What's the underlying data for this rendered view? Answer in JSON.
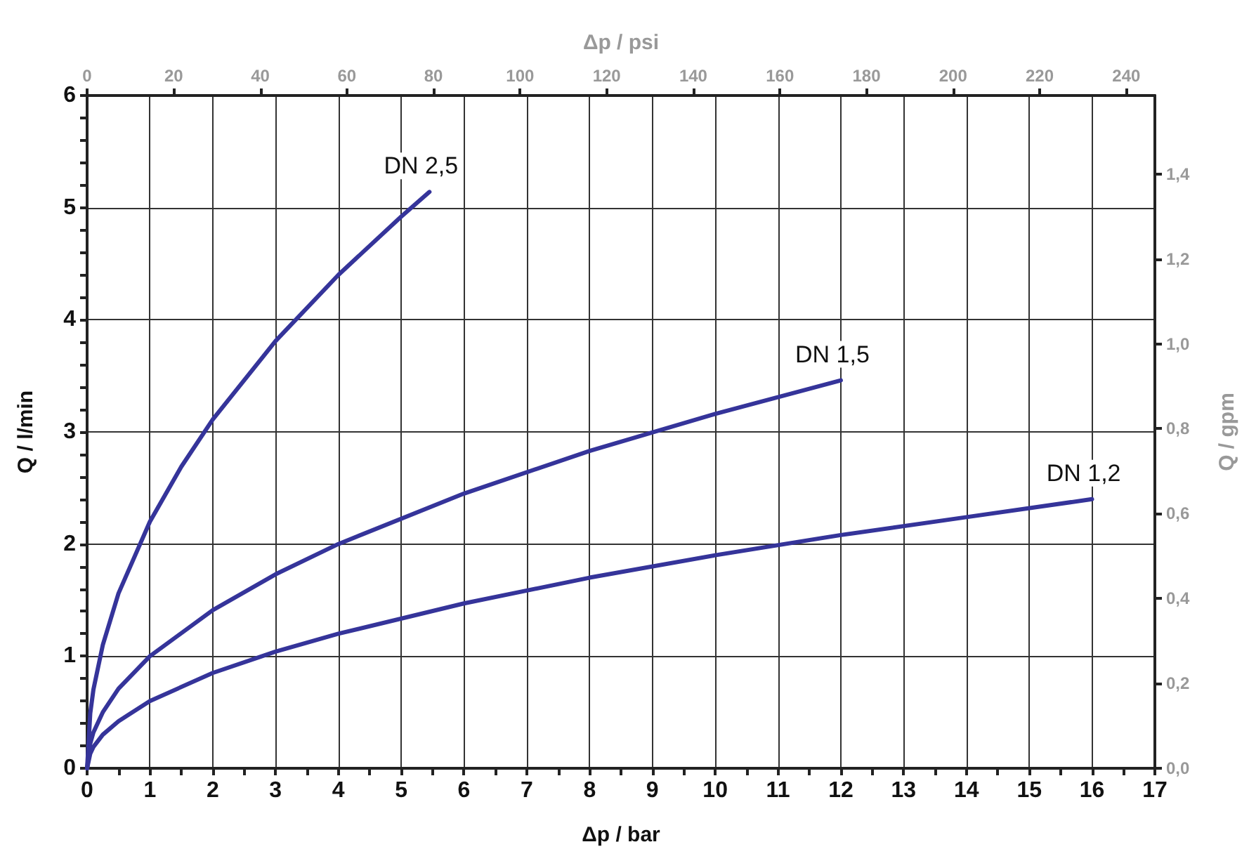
{
  "chart_data": {
    "type": "line",
    "xlabel": "Δp / bar",
    "ylabel": "Q / l/min",
    "x2label": "Δp / psi",
    "y2label": "Q / gpm",
    "xlim": [
      0,
      17
    ],
    "xticks": [
      0,
      {
        "value": 0.5,
        "label": null
      },
      1,
      {
        "value": 1.5,
        "label": null
      },
      2,
      {
        "value": 2.5,
        "label": null
      },
      3,
      {
        "value": 3.5,
        "label": null
      },
      4,
      {
        "value": 4.5,
        "label": null
      },
      5,
      {
        "value": 5.5,
        "label": null
      },
      6,
      {
        "value": 6.5,
        "label": null
      },
      7,
      {
        "value": 7.5,
        "label": null
      },
      8,
      {
        "value": 8.5,
        "label": null
      },
      9,
      {
        "value": 9.5,
        "label": null
      },
      10,
      {
        "value": 10.5,
        "label": null
      },
      11,
      {
        "value": 11.5,
        "label": null
      },
      12,
      {
        "value": 12.5,
        "label": null
      },
      13,
      {
        "value": 13.5,
        "label": null
      },
      14,
      {
        "value": 14.5,
        "label": null
      },
      15,
      {
        "value": 15.5,
        "label": null
      },
      16,
      {
        "value": 16.5,
        "label": null
      },
      17
    ],
    "ylim": [
      0,
      6
    ],
    "yticks": [
      0,
      {
        "value": 0.2,
        "label": null
      },
      {
        "value": 0.4,
        "label": null
      },
      {
        "value": 0.6,
        "label": null
      },
      {
        "value": 0.8,
        "label": null
      },
      1,
      {
        "value": 1.2,
        "label": null
      },
      {
        "value": 1.4,
        "label": null
      },
      {
        "value": 1.6,
        "label": null
      },
      {
        "value": 1.8,
        "label": null
      },
      2,
      {
        "value": 2.2,
        "label": null
      },
      {
        "value": 2.4,
        "label": null
      },
      {
        "value": 2.6,
        "label": null
      },
      {
        "value": 2.8,
        "label": null
      },
      3,
      {
        "value": 3.2,
        "label": null
      },
      {
        "value": 3.4,
        "label": null
      },
      {
        "value": 3.6,
        "label": null
      },
      {
        "value": 3.8,
        "label": null
      },
      4,
      {
        "value": 4.2,
        "label": null
      },
      {
        "value": 4.4,
        "label": null
      },
      {
        "value": 4.6,
        "label": null
      },
      {
        "value": 4.8,
        "label": null
      },
      5,
      {
        "value": 5.2,
        "label": null
      },
      {
        "value": 5.4,
        "label": null
      },
      {
        "value": 5.6,
        "label": null
      },
      {
        "value": 5.8,
        "label": null
      },
      6
    ],
    "x2lim": [
      0,
      246.6
    ],
    "x2ticks": [
      0,
      20,
      40,
      60,
      80,
      100,
      120,
      140,
      160,
      180,
      200,
      220,
      240
    ],
    "y2lim": [
      0,
      1.585
    ],
    "y2ticks": [
      {
        "value": 0,
        "label": "0,0"
      },
      {
        "value": 0.2,
        "label": "0,2"
      },
      {
        "value": 0.4,
        "label": "0,4"
      },
      {
        "value": 0.6,
        "label": "0,6"
      },
      {
        "value": 0.8,
        "label": "0,8"
      },
      {
        "value": 1.0,
        "label": "1,0"
      },
      {
        "value": 1.2,
        "label": "1,2"
      },
      {
        "value": 1.4,
        "label": "1,4"
      }
    ],
    "grid": true,
    "legend": false,
    "marker": "none",
    "line_style": "solid",
    "series": [
      {
        "name": "DN 2,5",
        "color": "#35349a",
        "x": [
          0,
          0.05,
          0.1,
          0.25,
          0.5,
          1,
          1.5,
          2,
          3,
          4,
          5,
          5.45
        ],
        "values": [
          0,
          0.49,
          0.7,
          1.1,
          1.56,
          2.2,
          2.69,
          3.11,
          3.81,
          4.4,
          4.92,
          5.14
        ]
      },
      {
        "name": "DN 1,5",
        "color": "#35349a",
        "x": [
          0,
          0.05,
          0.1,
          0.25,
          0.5,
          1,
          2,
          3,
          4,
          6,
          8,
          10,
          12
        ],
        "values": [
          0,
          0.22,
          0.32,
          0.5,
          0.71,
          1,
          1.41,
          1.73,
          2,
          2.45,
          2.83,
          3.16,
          3.46
        ]
      },
      {
        "name": "DN 1,2",
        "color": "#35349a",
        "x": [
          0,
          0.05,
          0.1,
          0.25,
          0.5,
          1,
          2,
          3,
          4,
          6,
          8,
          10,
          12,
          14,
          16
        ],
        "values": [
          0,
          0.13,
          0.19,
          0.3,
          0.42,
          0.6,
          0.85,
          1.04,
          1.2,
          1.47,
          1.7,
          1.9,
          2.08,
          2.24,
          2.4
        ]
      }
    ]
  }
}
